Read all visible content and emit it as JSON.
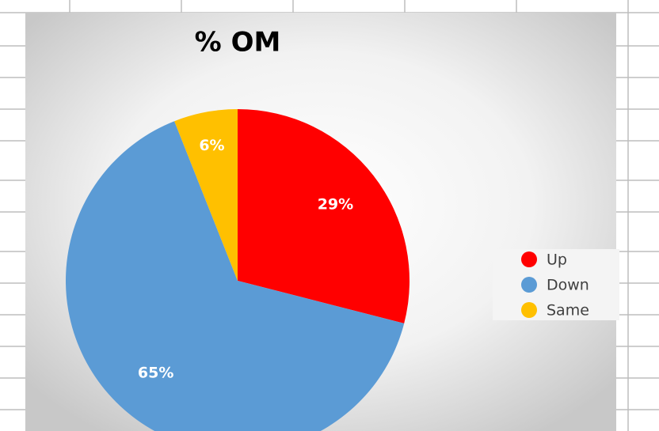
{
  "chart_data": {
    "type": "pie",
    "title": "% OM",
    "categories": [
      "Up",
      "Down",
      "Same"
    ],
    "values": [
      29,
      65,
      6
    ],
    "value_labels": [
      "29%",
      "65%",
      "6%"
    ],
    "colors": [
      "#ff0000",
      "#5b9bd5",
      "#ffc000"
    ],
    "legend": "right"
  }
}
